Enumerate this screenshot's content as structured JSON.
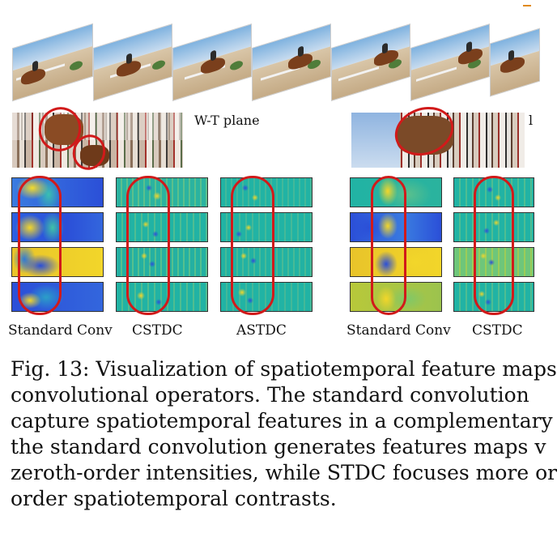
{
  "figure": {
    "wt_plane_label": "W-T plane",
    "wt_plane_label_right": "l",
    "operator_labels": [
      "Standard Conv",
      "CSTDC",
      "ASTDC",
      "Standard Conv",
      "CSTDC"
    ],
    "colors": {
      "highlight": "#d11a1a",
      "map_blue": "#2b4fd8",
      "map_teal": "#21b3a4",
      "map_yellow": "#f2d62a"
    }
  },
  "caption": {
    "lines": [
      "Fig. 13: Visualization of spatiotemporal feature maps",
      "convolutional operators. The standard convolution",
      "capture spatiotemporal features in a complementary",
      "the standard convolution generates features maps v",
      "zeroth-order intensities, while STDC focuses more or",
      "order spatiotemporal contrasts."
    ]
  }
}
